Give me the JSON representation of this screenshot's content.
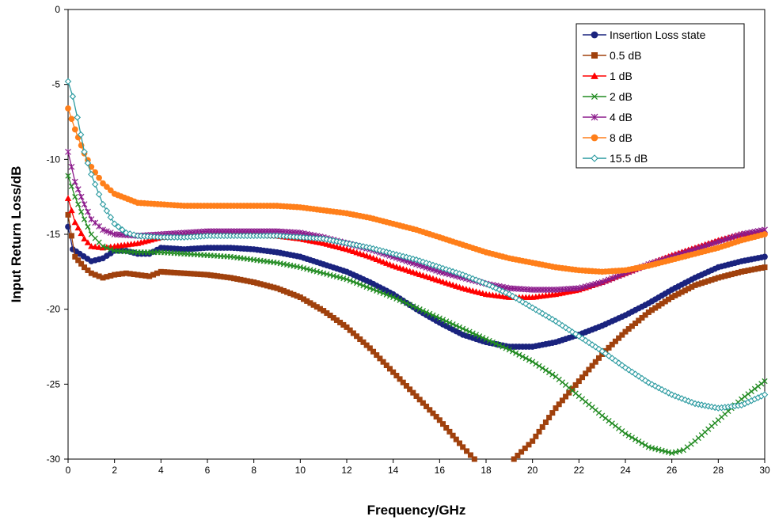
{
  "chart_data": {
    "type": "line",
    "title": "",
    "xlabel": "Frequency/GHz",
    "ylabel": "Input Return Loss/dB",
    "xlim": [
      0,
      30
    ],
    "ylim": [
      -30,
      0
    ],
    "x_ticks": [
      0,
      2,
      4,
      6,
      8,
      10,
      12,
      14,
      16,
      18,
      20,
      22,
      24,
      26,
      28,
      30
    ],
    "y_ticks": [
      0,
      -5,
      -10,
      -15,
      -20,
      -25,
      -30
    ],
    "grid": true,
    "legend_position": "top-right",
    "series": [
      {
        "name": "Insertion Loss state",
        "color": "#1a237e",
        "marker": "circle",
        "points": [
          [
            0,
            -14.5
          ],
          [
            0.2,
            -16
          ],
          [
            0.5,
            -16.3
          ],
          [
            1,
            -16.8
          ],
          [
            1.5,
            -16.6
          ],
          [
            2,
            -16.1
          ],
          [
            2.5,
            -16.1
          ],
          [
            3,
            -16.3
          ],
          [
            3.5,
            -16.3
          ],
          [
            4,
            -15.9
          ],
          [
            5,
            -16.0
          ],
          [
            6,
            -15.9
          ],
          [
            7,
            -15.9
          ],
          [
            8,
            -16.0
          ],
          [
            9,
            -16.2
          ],
          [
            10,
            -16.5
          ],
          [
            11,
            -17.0
          ],
          [
            12,
            -17.5
          ],
          [
            13,
            -18.2
          ],
          [
            14,
            -19.0
          ],
          [
            15,
            -20.0
          ],
          [
            16,
            -20.9
          ],
          [
            17,
            -21.7
          ],
          [
            18,
            -22.2
          ],
          [
            19,
            -22.5
          ],
          [
            20,
            -22.5
          ],
          [
            21,
            -22.2
          ],
          [
            22,
            -21.7
          ],
          [
            23,
            -21.1
          ],
          [
            24,
            -20.4
          ],
          [
            25,
            -19.6
          ],
          [
            26,
            -18.7
          ],
          [
            27,
            -17.9
          ],
          [
            28,
            -17.2
          ],
          [
            29,
            -16.8
          ],
          [
            30,
            -16.5
          ]
        ]
      },
      {
        "name": "0.5 dB",
        "color": "#a0410d",
        "marker": "square",
        "points": [
          [
            0,
            -13.7
          ],
          [
            0.3,
            -16.5
          ],
          [
            0.7,
            -17.2
          ],
          [
            1,
            -17.6
          ],
          [
            1.5,
            -17.9
          ],
          [
            2,
            -17.7
          ],
          [
            2.5,
            -17.6
          ],
          [
            3,
            -17.7
          ],
          [
            3.5,
            -17.8
          ],
          [
            4,
            -17.5
          ],
          [
            5,
            -17.6
          ],
          [
            6,
            -17.7
          ],
          [
            7,
            -17.9
          ],
          [
            8,
            -18.2
          ],
          [
            9,
            -18.6
          ],
          [
            10,
            -19.2
          ],
          [
            11,
            -20.1
          ],
          [
            12,
            -21.2
          ],
          [
            13,
            -22.6
          ],
          [
            14,
            -24.2
          ],
          [
            15,
            -25.8
          ],
          [
            16,
            -27.4
          ],
          [
            17,
            -29.2
          ],
          [
            17.5,
            -30.0
          ]
        ]
      },
      {
        "name": "0.5 dB",
        "color": "#a0410d",
        "marker": "square",
        "points": [
          [
            19.2,
            -30.0
          ],
          [
            20,
            -28.8
          ],
          [
            21,
            -26.6
          ],
          [
            22,
            -24.8
          ],
          [
            23,
            -23.0
          ],
          [
            24,
            -21.5
          ],
          [
            25,
            -20.2
          ],
          [
            26,
            -19.2
          ],
          [
            27,
            -18.4
          ],
          [
            28,
            -17.9
          ],
          [
            29,
            -17.5
          ],
          [
            30,
            -17.2
          ]
        ]
      },
      {
        "name": "1 dB",
        "color": "#ff0000",
        "marker": "triangle",
        "points": [
          [
            0,
            -12.6
          ],
          [
            0.3,
            -14.2
          ],
          [
            0.7,
            -15.3
          ],
          [
            1,
            -15.8
          ],
          [
            1.5,
            -15.9
          ],
          [
            2,
            -15.8
          ],
          [
            3,
            -15.6
          ],
          [
            4,
            -15.2
          ],
          [
            5,
            -15.1
          ],
          [
            6,
            -15.0
          ],
          [
            7,
            -15.0
          ],
          [
            8,
            -15.0
          ],
          [
            9,
            -15.1
          ],
          [
            10,
            -15.3
          ],
          [
            11,
            -15.6
          ],
          [
            12,
            -16.0
          ],
          [
            13,
            -16.5
          ],
          [
            14,
            -17.1
          ],
          [
            15,
            -17.6
          ],
          [
            16,
            -18.1
          ],
          [
            17,
            -18.6
          ],
          [
            18,
            -19.0
          ],
          [
            19,
            -19.2
          ],
          [
            20,
            -19.2
          ],
          [
            21,
            -19.0
          ],
          [
            22,
            -18.7
          ],
          [
            23,
            -18.2
          ],
          [
            24,
            -17.6
          ],
          [
            25,
            -17.0
          ],
          [
            26,
            -16.4
          ],
          [
            27,
            -15.9
          ],
          [
            28,
            -15.4
          ],
          [
            29,
            -15.0
          ],
          [
            30,
            -14.8
          ]
        ]
      },
      {
        "name": "2 dB",
        "color": "#228b22",
        "marker": "x",
        "points": [
          [
            0,
            -11.1
          ],
          [
            0.3,
            -12.5
          ],
          [
            0.7,
            -14.0
          ],
          [
            1,
            -15.0
          ],
          [
            1.5,
            -15.8
          ],
          [
            2,
            -16.1
          ],
          [
            3,
            -16.2
          ],
          [
            4,
            -16.2
          ],
          [
            5,
            -16.3
          ],
          [
            6,
            -16.4
          ],
          [
            7,
            -16.5
          ],
          [
            8,
            -16.7
          ],
          [
            9,
            -16.9
          ],
          [
            10,
            -17.2
          ],
          [
            11,
            -17.6
          ],
          [
            12,
            -18.0
          ],
          [
            13,
            -18.6
          ],
          [
            14,
            -19.2
          ],
          [
            15,
            -19.9
          ],
          [
            16,
            -20.6
          ],
          [
            17,
            -21.3
          ],
          [
            18,
            -22.0
          ],
          [
            19,
            -22.7
          ],
          [
            20,
            -23.5
          ],
          [
            21,
            -24.5
          ],
          [
            22,
            -25.8
          ],
          [
            23,
            -27.1
          ],
          [
            24,
            -28.3
          ],
          [
            25,
            -29.2
          ],
          [
            26,
            -29.6
          ],
          [
            26.5,
            -29.4
          ],
          [
            27,
            -28.8
          ],
          [
            28,
            -27.4
          ],
          [
            29,
            -26.0
          ],
          [
            30,
            -24.8
          ]
        ]
      },
      {
        "name": "4 dB",
        "color": "#8b1a8b",
        "marker": "star",
        "points": [
          [
            0,
            -9.5
          ],
          [
            0.3,
            -11.5
          ],
          [
            0.7,
            -13.0
          ],
          [
            1,
            -14.0
          ],
          [
            1.5,
            -14.7
          ],
          [
            2,
            -15.0
          ],
          [
            3,
            -15.1
          ],
          [
            4,
            -15.0
          ],
          [
            5,
            -14.9
          ],
          [
            6,
            -14.8
          ],
          [
            7,
            -14.8
          ],
          [
            8,
            -14.8
          ],
          [
            9,
            -14.8
          ],
          [
            10,
            -14.9
          ],
          [
            11,
            -15.2
          ],
          [
            12,
            -15.6
          ],
          [
            13,
            -16.0
          ],
          [
            14,
            -16.5
          ],
          [
            15,
            -17.0
          ],
          [
            16,
            -17.5
          ],
          [
            17,
            -17.9
          ],
          [
            18,
            -18.3
          ],
          [
            19,
            -18.6
          ],
          [
            20,
            -18.7
          ],
          [
            21,
            -18.7
          ],
          [
            22,
            -18.6
          ],
          [
            23,
            -18.2
          ],
          [
            24,
            -17.6
          ],
          [
            25,
            -17.0
          ],
          [
            26,
            -16.5
          ],
          [
            27,
            -16.0
          ],
          [
            28,
            -15.5
          ],
          [
            29,
            -15.0
          ],
          [
            30,
            -14.7
          ]
        ]
      },
      {
        "name": "8 dB",
        "color": "#ff7f1a",
        "marker": "circle",
        "points": [
          [
            0,
            -6.6
          ],
          [
            0.3,
            -8.0
          ],
          [
            0.7,
            -9.6
          ],
          [
            1,
            -10.5
          ],
          [
            1.5,
            -11.6
          ],
          [
            2,
            -12.3
          ],
          [
            3,
            -12.9
          ],
          [
            4,
            -13.0
          ],
          [
            5,
            -13.1
          ],
          [
            6,
            -13.1
          ],
          [
            7,
            -13.1
          ],
          [
            8,
            -13.1
          ],
          [
            9,
            -13.1
          ],
          [
            10,
            -13.2
          ],
          [
            11,
            -13.4
          ],
          [
            12,
            -13.6
          ],
          [
            13,
            -13.9
          ],
          [
            14,
            -14.3
          ],
          [
            15,
            -14.7
          ],
          [
            16,
            -15.2
          ],
          [
            17,
            -15.7
          ],
          [
            18,
            -16.2
          ],
          [
            19,
            -16.6
          ],
          [
            20,
            -16.9
          ],
          [
            21,
            -17.2
          ],
          [
            22,
            -17.4
          ],
          [
            23,
            -17.5
          ],
          [
            24,
            -17.4
          ],
          [
            25,
            -17.1
          ],
          [
            26,
            -16.7
          ],
          [
            27,
            -16.3
          ],
          [
            28,
            -15.9
          ],
          [
            29,
            -15.4
          ],
          [
            30,
            -15.0
          ]
        ]
      },
      {
        "name": "15.5 dB",
        "color": "#2a9aa0",
        "marker": "diamond",
        "points": [
          [
            0,
            -4.8
          ],
          [
            0.2,
            -5.8
          ],
          [
            0.4,
            -7.2
          ],
          [
            0.7,
            -9.5
          ],
          [
            1,
            -11.0
          ],
          [
            1.5,
            -13.0
          ],
          [
            2,
            -14.3
          ],
          [
            2.5,
            -14.9
          ],
          [
            3,
            -15.1
          ],
          [
            4,
            -15.2
          ],
          [
            5,
            -15.2
          ],
          [
            6,
            -15.1
          ],
          [
            7,
            -15.1
          ],
          [
            8,
            -15.1
          ],
          [
            9,
            -15.1
          ],
          [
            10,
            -15.2
          ],
          [
            11,
            -15.3
          ],
          [
            12,
            -15.6
          ],
          [
            13,
            -15.9
          ],
          [
            14,
            -16.3
          ],
          [
            15,
            -16.7
          ],
          [
            16,
            -17.2
          ],
          [
            17,
            -17.7
          ],
          [
            18,
            -18.3
          ],
          [
            19,
            -19.0
          ],
          [
            20,
            -19.9
          ],
          [
            21,
            -20.8
          ],
          [
            22,
            -21.8
          ],
          [
            23,
            -22.8
          ],
          [
            24,
            -23.9
          ],
          [
            25,
            -24.9
          ],
          [
            26,
            -25.7
          ],
          [
            27,
            -26.3
          ],
          [
            28,
            -26.6
          ],
          [
            29,
            -26.4
          ],
          [
            30,
            -25.7
          ]
        ]
      }
    ]
  },
  "legend": {
    "items": [
      {
        "label": "Insertion Loss state",
        "color": "#1a237e",
        "marker": "circle"
      },
      {
        "label": "0.5 dB",
        "color": "#a0410d",
        "marker": "square"
      },
      {
        "label": "1 dB",
        "color": "#ff0000",
        "marker": "triangle"
      },
      {
        "label": "2 dB",
        "color": "#228b22",
        "marker": "x"
      },
      {
        "label": "4 dB",
        "color": "#8b1a8b",
        "marker": "star"
      },
      {
        "label": "8 dB",
        "color": "#ff7f1a",
        "marker": "circle"
      },
      {
        "label": "15.5 dB",
        "color": "#2a9aa0",
        "marker": "diamond"
      }
    ]
  }
}
